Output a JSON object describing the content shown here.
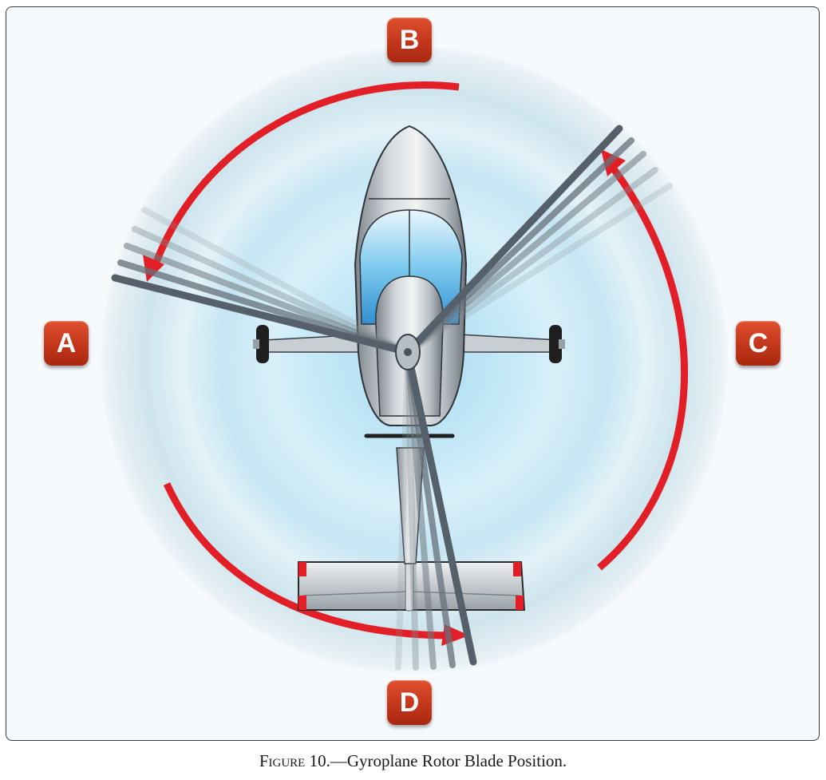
{
  "labels": {
    "a": "A",
    "b": "B",
    "c": "C",
    "d": "D"
  },
  "caption": {
    "figure": "Figure 10.",
    "title": "—Gyroplane Rotor Blade Position."
  },
  "colors": {
    "arrow": "#e21f26",
    "badge": "#c4381c",
    "disc": "#bfe3f3"
  }
}
